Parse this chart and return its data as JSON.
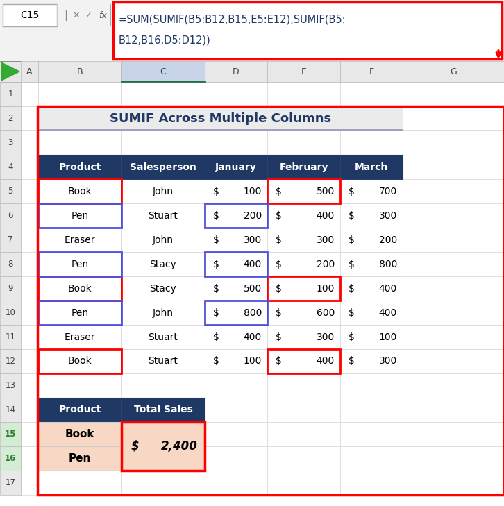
{
  "formula_bar_text": "=SUM(SUMIF(B5:B12,B15,E5:E12),SUMIF(B5:B12,B16,D5:D12))",
  "cell_ref": "C15",
  "title": "SUMIF Across Multiple Columns",
  "header_bg": "#1F3864",
  "header_fg": "#FFFFFF",
  "main_table_headers": [
    "Product",
    "Salesperson",
    "January",
    "February",
    "March"
  ],
  "main_table_data": [
    [
      "Book",
      "John",
      100,
      500,
      700
    ],
    [
      "Pen",
      "Stuart",
      200,
      400,
      300
    ],
    [
      "Eraser",
      "John",
      300,
      300,
      200
    ],
    [
      "Pen",
      "Stacy",
      400,
      200,
      800
    ],
    [
      "Book",
      "Stacy",
      500,
      100,
      400
    ],
    [
      "Pen",
      "John",
      800,
      600,
      400
    ],
    [
      "Eraser",
      "Stuart",
      400,
      300,
      100
    ],
    [
      "Book",
      "Stuart",
      100,
      400,
      300
    ]
  ],
  "summary_headers": [
    "Product",
    "Total Sales"
  ],
  "summary_products": [
    "Book",
    "Pen"
  ],
  "summary_value": "2,400",
  "summary_bg": "#F8D7C4",
  "red_border_color": "#FF0000",
  "blue_border_color": "#5050DD",
  "col_letters": [
    "A",
    "B",
    "C",
    "D",
    "E",
    "F",
    "G"
  ],
  "row_numbers": [
    "1",
    "2",
    "3",
    "4",
    "5",
    "6",
    "7",
    "8",
    "9",
    "10",
    "11",
    "12",
    "13",
    "14",
    "15",
    "16",
    "17"
  ],
  "formula_line1": "=SUM(SUMIF(B5:B12,B15,E5:E12),SUMIF(B5:",
  "formula_line2": "B12,B16,D5:D12))",
  "formula_text_color": "#1F3864",
  "col_header_selected_bg": "#C8D4E8",
  "col_header_bg": "#E8E8E8",
  "row_header_bg": "#E8E8E8",
  "row_header_selected_bg": "#D4ECD4",
  "row_header_selected_color": "#2E7D32",
  "grid_line_color": "#C8C8C8",
  "title_bg": "#EBEBEB",
  "title_color": "#1F3864",
  "outer_border_color": "#FF0000"
}
